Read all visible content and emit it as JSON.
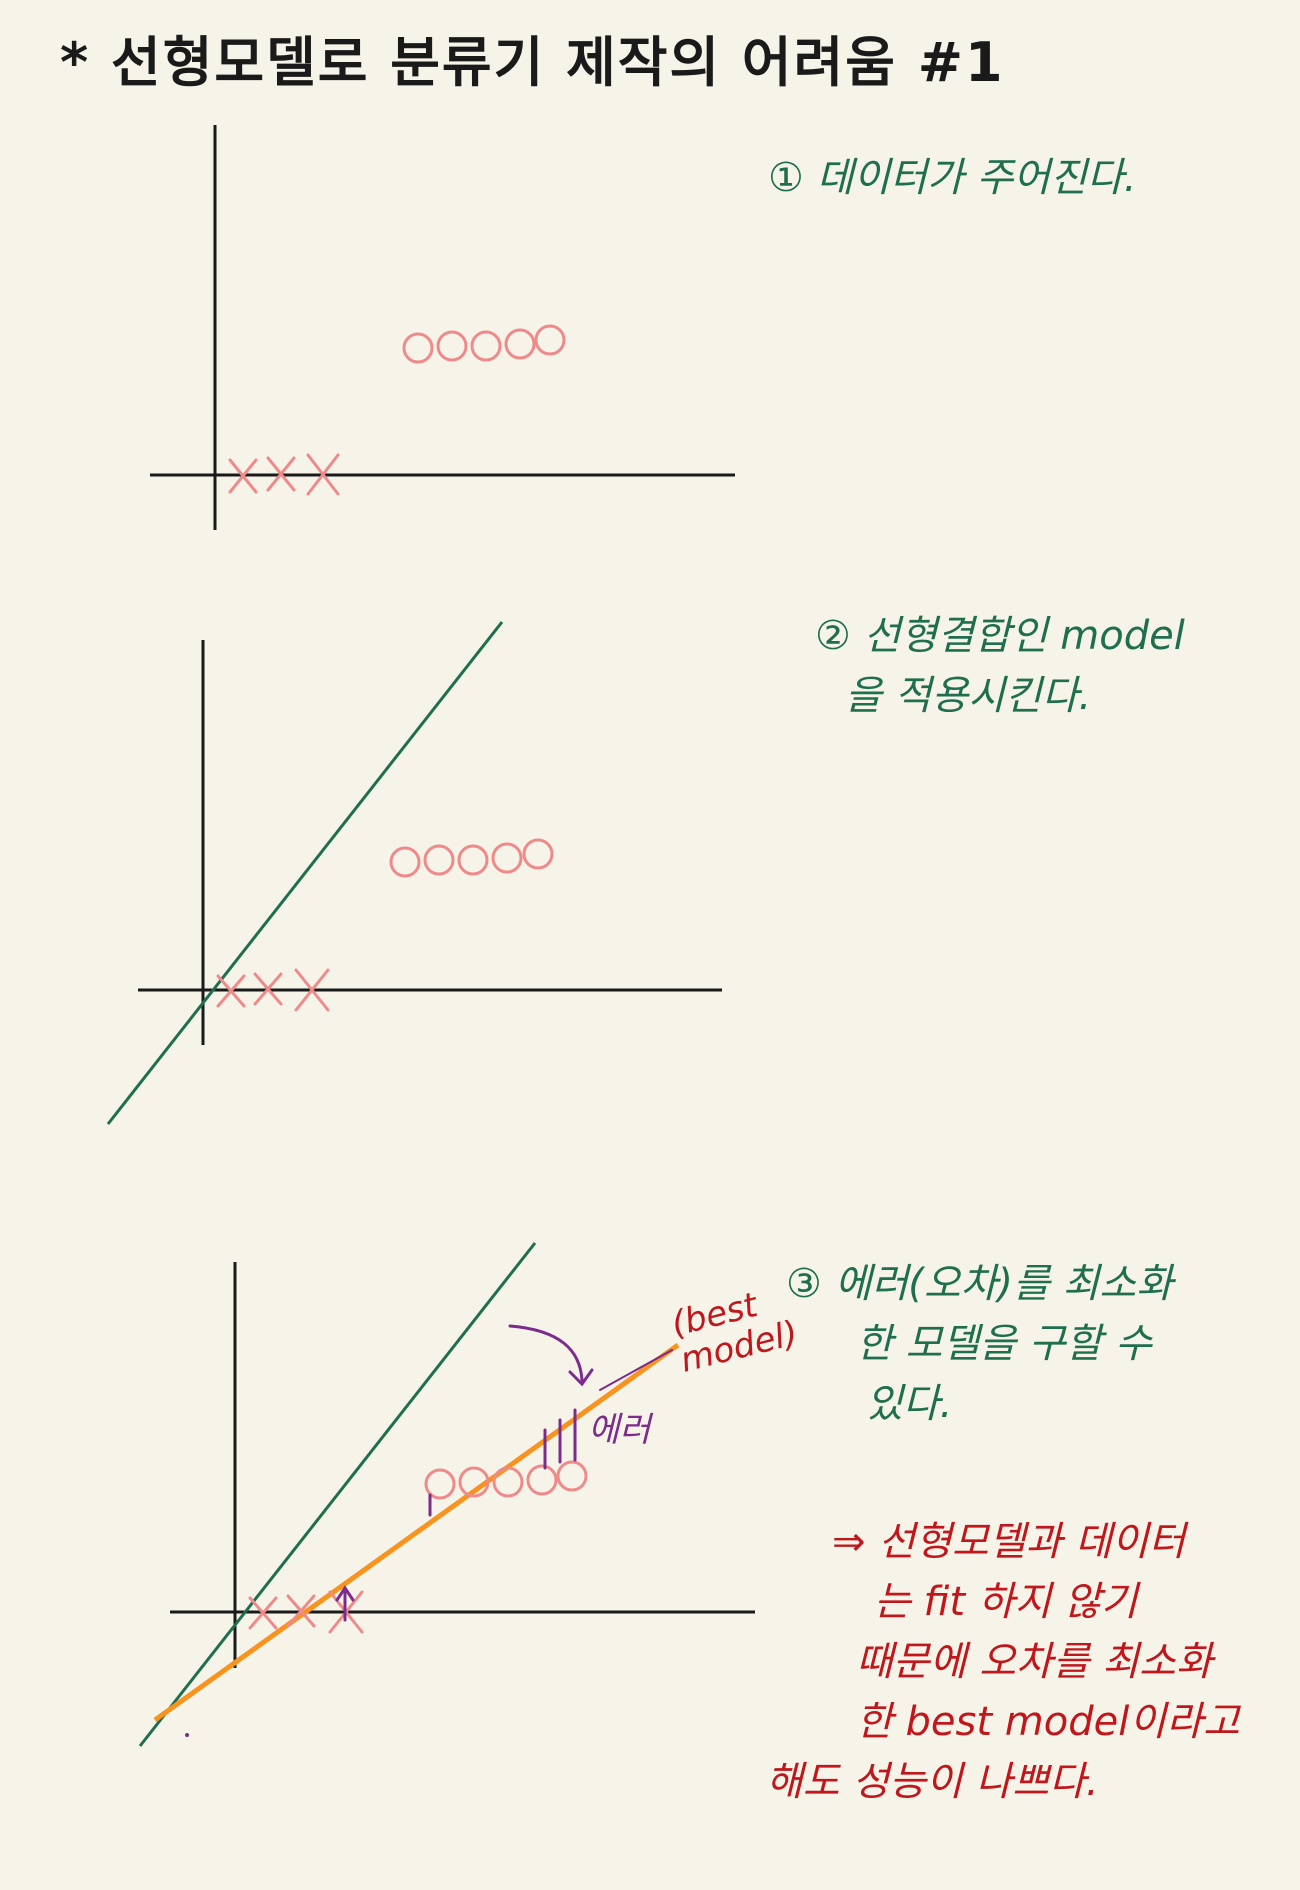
{
  "title": "* 선형모델로  분류기 제작의 어려움 #1",
  "steps": [
    {
      "lines": [
        "① 데이터가 주어진다."
      ],
      "color": "#1f6e4e"
    },
    {
      "lines": [
        "② 선형결합인 model",
        "을 적용시킨다."
      ],
      "color": "#1f6e4e"
    },
    {
      "lines": [
        "③ 에러(오차)를 최소화",
        "한 모델을 구할 수",
        "있다."
      ],
      "color": "#1f6e4e"
    }
  ],
  "conclusion": {
    "lines": [
      "⇒ 선형모델과 데이터",
      "는 fit 하지 않기",
      "때문에 오차를 최소화",
      "한 best model이라고",
      "해도 성능이 나쁘다."
    ],
    "color": "#c0171c"
  },
  "labels": {
    "best_model": [
      "(best",
      "model)"
    ],
    "error": "에러"
  },
  "colors": {
    "axis": "#1a1a1a",
    "points": "#ef8a8a",
    "green_line": "#1f6e4e",
    "orange_line": "#f7931e",
    "error_marks": "#7b2c8c",
    "note_green": "#1f6e4e",
    "note_red": "#c0171c",
    "background": "#f6f3e8"
  },
  "icons": {
    "circle_points": "circle-marker",
    "x_points": "x-marker"
  }
}
